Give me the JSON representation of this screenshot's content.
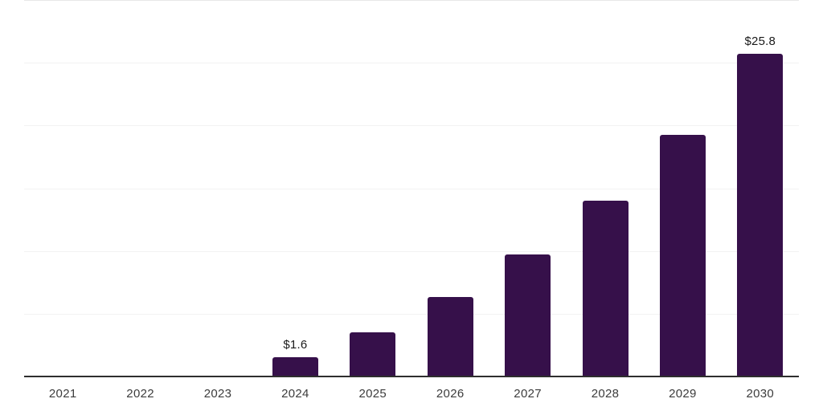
{
  "chart_data": {
    "type": "bar",
    "categories": [
      "2021",
      "2022",
      "2023",
      "2024",
      "2025",
      "2026",
      "2027",
      "2028",
      "2029",
      "2030"
    ],
    "values": [
      0,
      0,
      0,
      1.6,
      3.6,
      6.4,
      9.8,
      14.1,
      19.3,
      25.8
    ],
    "data_labels": [
      "",
      "",
      "",
      "$1.6",
      "",
      "",
      "",
      "",
      "",
      "$25.8"
    ],
    "title": "",
    "xlabel": "",
    "ylabel": "",
    "ylim": [
      0,
      30
    ],
    "gridline_interval": 5,
    "grid": true,
    "legend": false,
    "y_tick_labels_visible": false
  },
  "colors": {
    "background": "#ffffff",
    "bar": "#36104A",
    "axis_line": "#2e2e2e",
    "gridline": "#f2f2f2",
    "top_gridline": "#e8e8e8",
    "value_label_text": "#1a1a1a",
    "tick_label_text": "#3c3c3c"
  }
}
